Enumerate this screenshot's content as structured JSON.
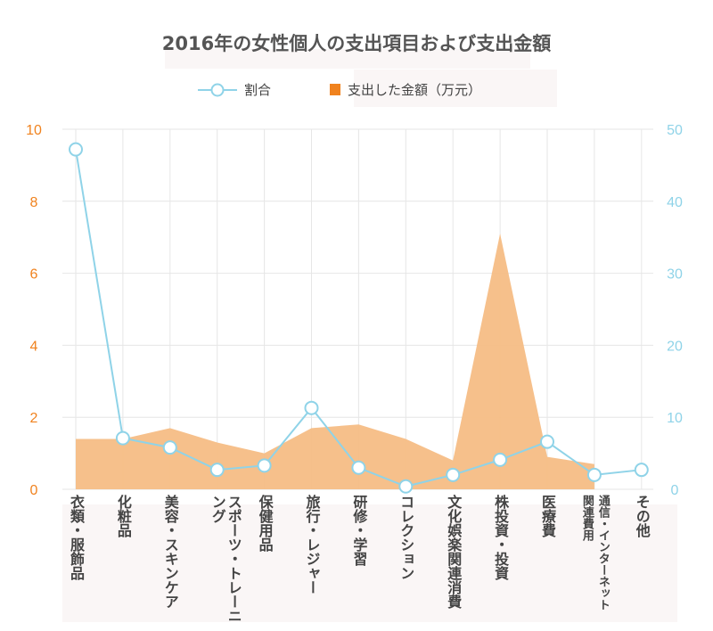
{
  "chart_data": {
    "type": "area+line",
    "title": "2016年の女性個人の支出項目および支出金額",
    "categories": [
      "衣類・服飾品",
      "化粧品",
      "美容・スキンケア",
      "スポーツ・トレーニング",
      "保健用品",
      "旅行・レジャー",
      "研修・学習",
      "コレクション",
      "文化娯楽関連消費",
      "株投資・投資",
      "医療費",
      "通信・インターネット関連費用",
      "その他"
    ],
    "category_label_parts": {
      "11": [
        "関連費用",
        "通信・インターネット"
      ]
    },
    "series": [
      {
        "name": "割合",
        "type": "line",
        "axis": "right",
        "color": "#8fd3e8",
        "values": [
          47.2,
          7.1,
          5.8,
          2.7,
          3.3,
          11.3,
          3.0,
          0.4,
          2.0,
          4.1,
          6.6,
          2.0,
          2.7
        ]
      },
      {
        "name": "支出した金額（万元）",
        "type": "area",
        "axis": "left",
        "color": "#f5bd85",
        "values": [
          1.4,
          1.4,
          1.7,
          1.3,
          1.0,
          1.7,
          1.8,
          1.4,
          0.8,
          7.1,
          0.9,
          0.7,
          null
        ]
      }
    ],
    "left_axis": {
      "ylim": [
        0,
        10
      ],
      "ticks": [
        "0",
        "2",
        "4",
        "6",
        "8",
        "10"
      ],
      "color": "#f0821e"
    },
    "right_axis": {
      "ylim": [
        0,
        50
      ],
      "ticks": [
        "0",
        "10",
        "20",
        "30",
        "40",
        "50"
      ],
      "color": "#8fd3e8"
    },
    "legend": [
      "割合",
      "支出した金額（万元）"
    ],
    "legend_position": "top-center",
    "grid": true
  }
}
